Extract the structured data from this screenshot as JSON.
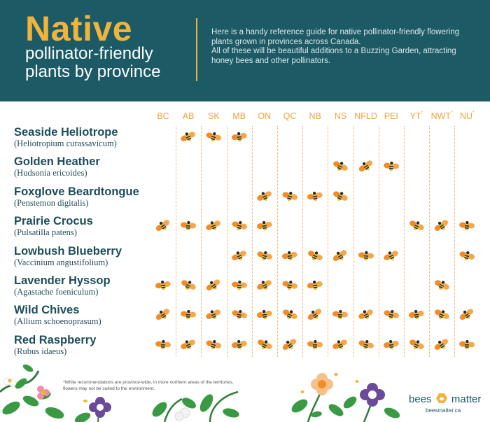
{
  "header": {
    "title": "Native",
    "subtitle": "pollinator-friendly plants by province",
    "description_1": "Here is a handy reference guide for native pollinator-friendly flowering plants grown in provinces across Canada.",
    "description_2": "All of these will be beautiful additions to a Buzzing Garden, attracting honey bees and other pollinators."
  },
  "columns": [
    {
      "label": "BC",
      "mark": ""
    },
    {
      "label": "AB",
      "mark": ""
    },
    {
      "label": "SK",
      "mark": ""
    },
    {
      "label": "MB",
      "mark": ""
    },
    {
      "label": "ON",
      "mark": ""
    },
    {
      "label": "QC",
      "mark": ""
    },
    {
      "label": "NB",
      "mark": ""
    },
    {
      "label": "NS",
      "mark": ""
    },
    {
      "label": "NFLD",
      "mark": ""
    },
    {
      "label": "PEI",
      "mark": ""
    },
    {
      "label": "YT",
      "mark": "*"
    },
    {
      "label": "NWT",
      "mark": "*"
    },
    {
      "label": "NU",
      "mark": "*"
    }
  ],
  "plants": [
    {
      "name": "Seaside Heliotrope",
      "scientific": "(Heliotropium curassavicum)",
      "provinces": [
        "AB",
        "SK",
        "MB"
      ]
    },
    {
      "name": "Golden Heather",
      "scientific": "(Hudsonia ericoides)",
      "provinces": [
        "NS",
        "NFLD",
        "PEI"
      ]
    },
    {
      "name": "Foxglove Beardtongue",
      "scientific": "(Penstemon digitalis)",
      "provinces": [
        "ON",
        "QC",
        "NB",
        "NS"
      ]
    },
    {
      "name": "Prairie Crocus",
      "scientific": "(Pulsatilla patens)",
      "provinces": [
        "BC",
        "AB",
        "SK",
        "MB",
        "ON",
        "YT",
        "NWT",
        "NU"
      ]
    },
    {
      "name": "Lowbush Blueberry",
      "scientific": "(Vaccinium angustifolium)",
      "provinces": [
        "MB",
        "ON",
        "QC",
        "NB",
        "NS",
        "NFLD",
        "PEI",
        "NU"
      ]
    },
    {
      "name": "Lavender Hyssop",
      "scientific": "(Agastache foeniculum)",
      "provinces": [
        "BC",
        "AB",
        "SK",
        "MB",
        "ON",
        "QC",
        "NB",
        "NWT"
      ]
    },
    {
      "name": "Wild Chives",
      "scientific": "(Allium schoenoprasum)",
      "provinces": [
        "BC",
        "AB",
        "SK",
        "MB",
        "ON",
        "QC",
        "NB",
        "NS",
        "NFLD",
        "PEI",
        "YT",
        "NWT",
        "NU"
      ]
    },
    {
      "name": "Red Raspberry",
      "scientific": "(Rubus idaeus)",
      "provinces": [
        "BC",
        "AB",
        "SK",
        "MB",
        "ON",
        "QC",
        "NB",
        "NS",
        "NFLD",
        "PEI",
        "YT",
        "NWT",
        "NU"
      ]
    }
  ],
  "footer": {
    "footnote": "*While recommendations are province-wide, in more northern areas of the territories, flowers may not be suited to the environment.",
    "brand_left": "bees",
    "brand_right": "matter",
    "brand_url": "beesmatter.ca"
  },
  "colors": {
    "header_bg": "#1c5a66",
    "accent": "#f0b43c",
    "text_dark": "#1c4d5a",
    "bee_wing": "#f28c28",
    "bee_body": "#2b2b2b"
  },
  "icons": {
    "bee": "bee-icon",
    "flower": "flower-icon",
    "leaf": "leaf-icon",
    "logo": "hexagon-logo-icon"
  }
}
